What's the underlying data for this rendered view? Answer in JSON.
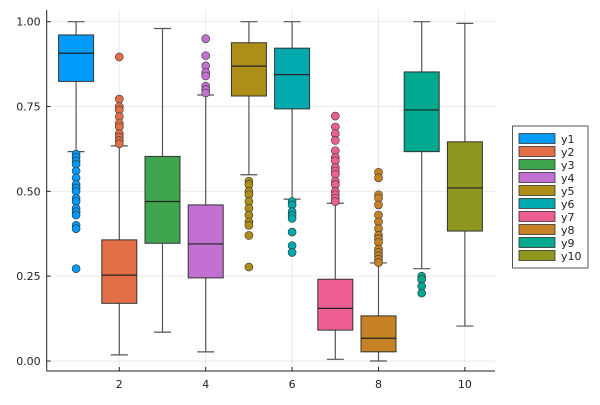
{
  "chart_data": {
    "type": "box",
    "title": "",
    "xlabel": "",
    "ylabel": "",
    "xlim": [
      0.3,
      10.7
    ],
    "ylim": [
      -0.03,
      1.03
    ],
    "xticks": [
      2,
      4,
      6,
      8,
      10
    ],
    "xtick_labels": [
      "2",
      "4",
      "6",
      "8",
      "10"
    ],
    "yticks": [
      0,
      0.25,
      0.5,
      0.75,
      1.0
    ],
    "ytick_labels": [
      "0.00",
      "0.25",
      "0.50",
      "0.75",
      "1.00"
    ],
    "grid": true,
    "legend_position": "outer-right",
    "series": [
      {
        "name": "y1",
        "x": 1,
        "color": "#009afa",
        "whisker_low": 0.617,
        "q1": 0.824,
        "median": 0.907,
        "q3": 0.961,
        "whisker_high": 1.0,
        "outliers": [
          0.61,
          0.6,
          0.59,
          0.58,
          0.56,
          0.54,
          0.52,
          0.51,
          0.5,
          0.48,
          0.47,
          0.45,
          0.44,
          0.43,
          0.4,
          0.39,
          0.272
        ]
      },
      {
        "name": "y2",
        "x": 2,
        "color": "#e36f47",
        "whisker_low": 0.018,
        "q1": 0.17,
        "median": 0.253,
        "q3": 0.357,
        "whisker_high": 0.634,
        "outliers": [
          0.896,
          0.772,
          0.75,
          0.74,
          0.72,
          0.7,
          0.69,
          0.67,
          0.66,
          0.65,
          0.64
        ]
      },
      {
        "name": "y3",
        "x": 3,
        "color": "#3ea44e",
        "whisker_low": 0.085,
        "q1": 0.347,
        "median": 0.47,
        "q3": 0.603,
        "whisker_high": 0.98,
        "outliers": []
      },
      {
        "name": "y4",
        "x": 4,
        "color": "#c271d2",
        "whisker_low": 0.027,
        "q1": 0.245,
        "median": 0.345,
        "q3": 0.46,
        "whisker_high": 0.784,
        "outliers": [
          0.95,
          0.9,
          0.87,
          0.85,
          0.84,
          0.81,
          0.8,
          0.79
        ]
      },
      {
        "name": "y5",
        "x": 5,
        "color": "#ac8e18",
        "whisker_low": 0.549,
        "q1": 0.781,
        "median": 0.869,
        "q3": 0.938,
        "whisker_high": 1.0,
        "outliers": [
          0.53,
          0.52,
          0.5,
          0.49,
          0.47,
          0.45,
          0.43,
          0.41,
          0.4,
          0.37,
          0.277
        ]
      },
      {
        "name": "y6",
        "x": 6,
        "color": "#00a9ad",
        "whisker_low": 0.477,
        "q1": 0.743,
        "median": 0.844,
        "q3": 0.922,
        "whisker_high": 1.0,
        "outliers": [
          0.47,
          0.46,
          0.44,
          0.43,
          0.42,
          0.38,
          0.34,
          0.32
        ]
      },
      {
        "name": "y7",
        "x": 7,
        "color": "#ed5e93",
        "whisker_low": 0.005,
        "q1": 0.091,
        "median": 0.155,
        "q3": 0.241,
        "whisker_high": 0.465,
        "outliers": [
          0.722,
          0.69,
          0.67,
          0.65,
          0.62,
          0.6,
          0.59,
          0.57,
          0.56,
          0.55,
          0.53,
          0.52,
          0.5,
          0.49,
          0.48,
          0.47
        ]
      },
      {
        "name": "y8",
        "x": 8,
        "color": "#c68125",
        "whisker_low": 0.0,
        "q1": 0.027,
        "median": 0.067,
        "q3": 0.133,
        "whisker_high": 0.289,
        "outliers": [
          0.556,
          0.54,
          0.49,
          0.48,
          0.46,
          0.43,
          0.41,
          0.39,
          0.37,
          0.36,
          0.35,
          0.33,
          0.32,
          0.31,
          0.3,
          0.29
        ]
      },
      {
        "name": "y9",
        "x": 9,
        "color": "#00a98d",
        "whisker_low": 0.272,
        "q1": 0.617,
        "median": 0.74,
        "q3": 0.852,
        "whisker_high": 1.0,
        "outliers": [
          0.25,
          0.24,
          0.22,
          0.2
        ]
      },
      {
        "name": "y10",
        "x": 10,
        "color": "#8e971e",
        "whisker_low": 0.103,
        "q1": 0.383,
        "median": 0.51,
        "q3": 0.646,
        "whisker_high": 0.995,
        "outliers": []
      }
    ]
  }
}
